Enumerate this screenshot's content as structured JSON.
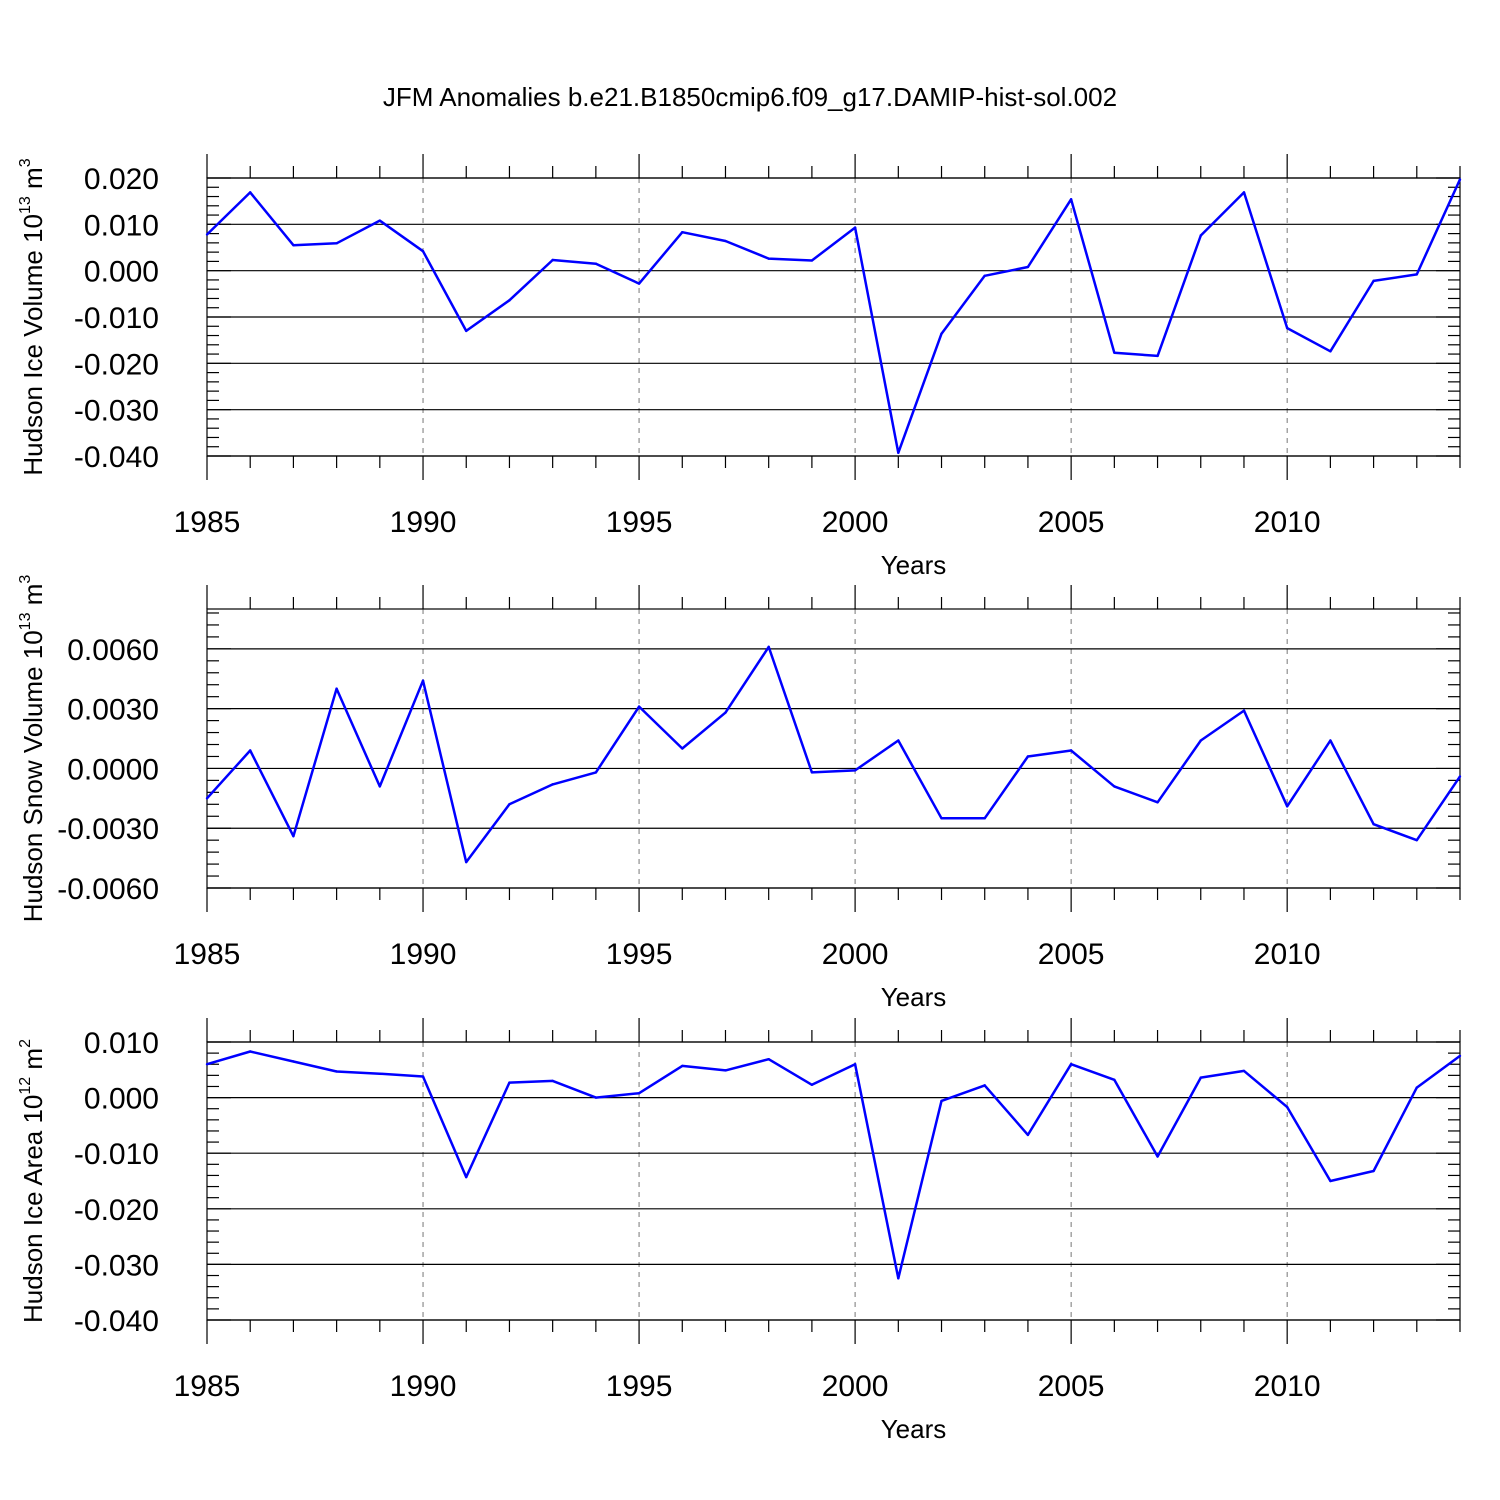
{
  "title": "JFM Anomalies b.e21.B1850cmip6.f09_g17.DAMIP-hist-sol.002",
  "colors": {
    "line": "#0000ff",
    "axis": "#000000",
    "grid": "#777777",
    "background": "#ffffff"
  },
  "chart_data": [
    {
      "type": "line",
      "ylabel": {
        "text": "Hudson Ice Volume 10",
        "exp": "13",
        "unit": " m",
        "unit_exp": "3"
      },
      "xlabel": "Years",
      "xlim": [
        1985,
        2014
      ],
      "ylim": [
        -0.04,
        0.02
      ],
      "yticks": [
        0.02,
        0.01,
        0.0,
        -0.01,
        -0.02,
        -0.03,
        -0.04
      ],
      "ytick_labels": [
        "0.020",
        "0.010",
        "0.000",
        "-0.010",
        "-0.020",
        "-0.030",
        "-0.040"
      ],
      "xticks": [
        1985,
        1990,
        1995,
        2000,
        2005,
        2010
      ],
      "xtick_labels": [
        "1985",
        "1990",
        "1995",
        "2000",
        "2005",
        "2010"
      ],
      "grid_x": [
        1990,
        1995,
        2000,
        2005,
        2010
      ],
      "x": [
        1985,
        1986,
        1987,
        1988,
        1989,
        1990,
        1991,
        1992,
        1993,
        1994,
        1995,
        1996,
        1997,
        1998,
        1999,
        2000,
        2001,
        2002,
        2003,
        2004,
        2005,
        2006,
        2007,
        2008,
        2009,
        2010,
        2011,
        2012,
        2013,
        2014
      ],
      "values": [
        0.0078,
        0.0169,
        0.0055,
        0.0059,
        0.0108,
        0.0042,
        -0.013,
        -0.0064,
        0.0023,
        0.0015,
        -0.0028,
        0.0083,
        0.0064,
        0.0026,
        0.0022,
        0.0093,
        -0.0393,
        -0.0136,
        -0.0011,
        0.0008,
        0.0154,
        -0.0177,
        -0.0184,
        0.0076,
        0.0169,
        -0.0124,
        -0.0174,
        -0.0022,
        -0.0008,
        0.0197
      ]
    },
    {
      "type": "line",
      "ylabel": {
        "text": "Hudson Snow Volume 10",
        "exp": "13",
        "unit": " m",
        "unit_exp": "3"
      },
      "xlabel": "Years",
      "xlim": [
        1985,
        2014
      ],
      "ylim": [
        -0.006,
        0.008
      ],
      "yticks": [
        0.006,
        0.003,
        0.0,
        -0.003,
        -0.006
      ],
      "ytick_labels": [
        "0.0060",
        "0.0030",
        "0.0000",
        "-0.0030",
        "-0.0060"
      ],
      "xticks": [
        1985,
        1990,
        1995,
        2000,
        2005,
        2010
      ],
      "xtick_labels": [
        "1985",
        "1990",
        "1995",
        "2000",
        "2005",
        "2010"
      ],
      "grid_x": [
        1990,
        1995,
        2000,
        2005,
        2010
      ],
      "x": [
        1985,
        1986,
        1987,
        1988,
        1989,
        1990,
        1991,
        1992,
        1993,
        1994,
        1995,
        1996,
        1997,
        1998,
        1999,
        2000,
        2001,
        2002,
        2003,
        2004,
        2005,
        2006,
        2007,
        2008,
        2009,
        2010,
        2011,
        2012,
        2013,
        2014
      ],
      "values": [
        -0.0015,
        0.0009,
        -0.0034,
        0.004,
        -0.0009,
        0.0044,
        -0.0047,
        -0.0018,
        -0.0008,
        -0.0002,
        0.0031,
        0.001,
        0.0028,
        0.0061,
        -0.0002,
        -0.0001,
        0.0014,
        -0.0025,
        -0.0025,
        0.0006,
        0.0009,
        -0.0009,
        -0.0017,
        0.0014,
        0.0029,
        -0.0019,
        0.0014,
        -0.0028,
        -0.0036,
        -0.0004
      ]
    },
    {
      "type": "line",
      "ylabel": {
        "text": "Hudson Ice Area 10",
        "exp": "12",
        "unit": " m",
        "unit_exp": "2"
      },
      "xlabel": "Years",
      "xlim": [
        1985,
        2014
      ],
      "ylim": [
        -0.04,
        0.01
      ],
      "yticks": [
        0.01,
        0.0,
        -0.01,
        -0.02,
        -0.03,
        -0.04
      ],
      "ytick_labels": [
        "0.010",
        "0.000",
        "-0.010",
        "-0.020",
        "-0.030",
        "-0.040"
      ],
      "xticks": [
        1985,
        1990,
        1995,
        2000,
        2005,
        2010
      ],
      "xtick_labels": [
        "1985",
        "1990",
        "1995",
        "2000",
        "2005",
        "2010"
      ],
      "grid_x": [
        1990,
        1995,
        2000,
        2005,
        2010
      ],
      "x": [
        1985,
        1986,
        1987,
        1988,
        1989,
        1990,
        1991,
        1992,
        1993,
        1994,
        1995,
        1996,
        1997,
        1998,
        1999,
        2000,
        2001,
        2002,
        2003,
        2004,
        2005,
        2006,
        2007,
        2008,
        2009,
        2010,
        2011,
        2012,
        2013,
        2014
      ],
      "values": [
        0.006,
        0.0083,
        0.0065,
        0.0047,
        0.0043,
        0.0038,
        -0.0143,
        0.0027,
        0.003,
        0.0,
        0.0008,
        0.0057,
        0.0049,
        0.0069,
        0.0023,
        0.006,
        -0.0325,
        -0.0006,
        0.0022,
        -0.0067,
        0.006,
        0.0032,
        -0.0106,
        0.0036,
        0.0048,
        -0.0017,
        -0.015,
        -0.0132,
        0.0018,
        0.0075
      ]
    }
  ]
}
